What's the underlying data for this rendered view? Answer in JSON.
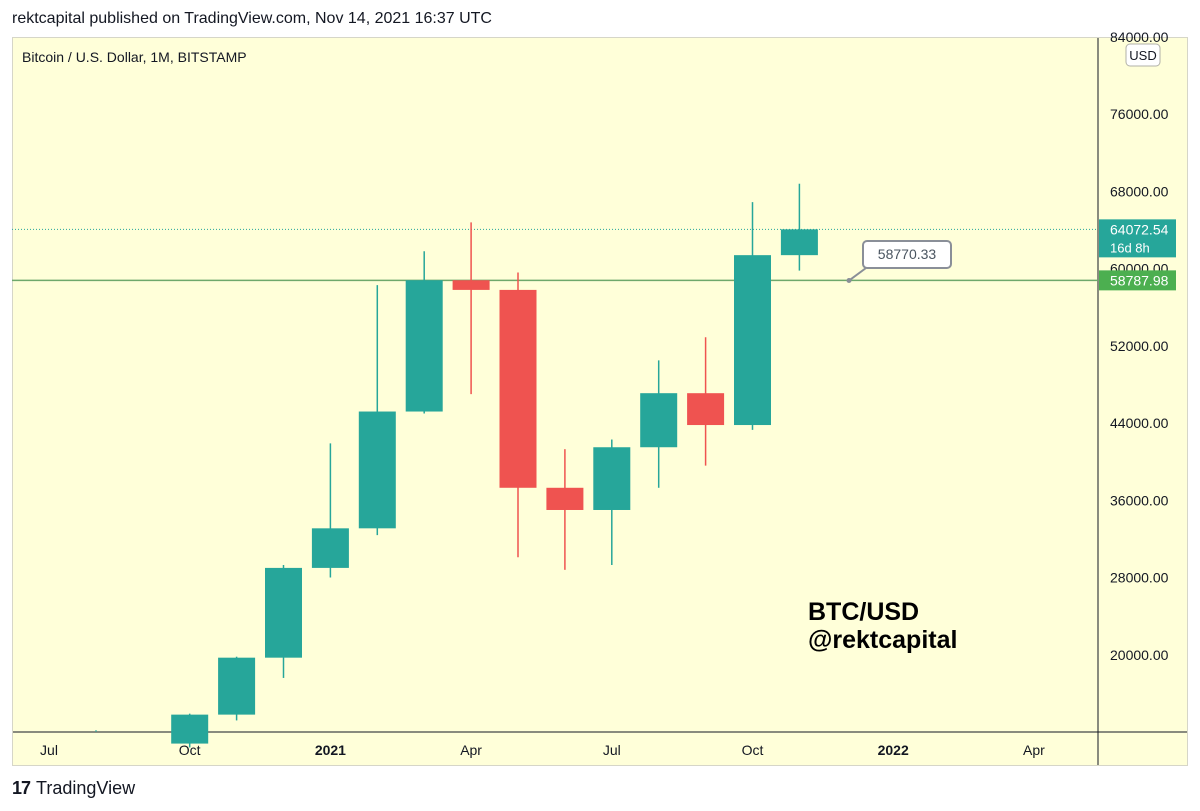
{
  "header": {
    "published_line": "rektcapital published on TradingView.com, Nov 14, 2021 16:37 UTC"
  },
  "footer": {
    "logo_mark": "17",
    "logo_text": "TradingView"
  },
  "watermark": {
    "line1": "BTC/USD",
    "line2": "@rektcapital"
  },
  "chart_data": {
    "type": "candlestick",
    "title": "Bitcoin / U.S. Dollar, 1M, BITSTAMP",
    "currency_badge": "USD",
    "ylim": [
      12000,
      84000
    ],
    "y_ticks": [
      20000,
      28000,
      36000,
      44000,
      52000,
      60000,
      68000,
      76000,
      84000
    ],
    "y_tick_labels": [
      "20000.00",
      "28000.00",
      "36000.00",
      "44000.00",
      "52000.00",
      "60000.00",
      "68000.00",
      "76000.00",
      "84000.00"
    ],
    "x_tick_labels": [
      {
        "label": "Jul",
        "month_index": 0,
        "bold": false
      },
      {
        "label": "Oct",
        "month_index": 3,
        "bold": false
      },
      {
        "label": "2021",
        "month_index": 6,
        "bold": true
      },
      {
        "label": "Apr",
        "month_index": 9,
        "bold": false
      },
      {
        "label": "Jul",
        "month_index": 12,
        "bold": false
      },
      {
        "label": "Oct",
        "month_index": 15,
        "bold": false
      },
      {
        "label": "2022",
        "month_index": 18,
        "bold": true
      },
      {
        "label": "Apr",
        "month_index": 21,
        "bold": false
      }
    ],
    "candles": [
      {
        "month": "2020-10",
        "open": 10800,
        "high": 13900,
        "low": 10400,
        "close": 13800
      },
      {
        "month": "2020-11",
        "open": 13800,
        "high": 19800,
        "low": 13200,
        "close": 19700
      },
      {
        "month": "2020-12",
        "open": 19700,
        "high": 29300,
        "low": 17600,
        "close": 29000
      },
      {
        "month": "2021-01",
        "open": 29000,
        "high": 41900,
        "low": 28000,
        "close": 33100
      },
      {
        "month": "2021-02",
        "open": 33100,
        "high": 58300,
        "low": 32400,
        "close": 45200
      },
      {
        "month": "2021-03",
        "open": 45200,
        "high": 61800,
        "low": 45000,
        "close": 58800
      },
      {
        "month": "2021-04",
        "open": 58800,
        "high": 64800,
        "low": 47000,
        "close": 57800
      },
      {
        "month": "2021-05",
        "open": 57800,
        "high": 59600,
        "low": 30100,
        "close": 37300
      },
      {
        "month": "2021-06",
        "open": 37300,
        "high": 41300,
        "low": 28800,
        "close": 35000
      },
      {
        "month": "2021-07",
        "open": 35000,
        "high": 42300,
        "low": 29300,
        "close": 41500
      },
      {
        "month": "2021-08",
        "open": 41500,
        "high": 50500,
        "low": 37300,
        "close": 47100
      },
      {
        "month": "2021-09",
        "open": 47100,
        "high": 52900,
        "low": 39600,
        "close": 43800
      },
      {
        "month": "2021-10",
        "open": 43800,
        "high": 66900,
        "low": 43300,
        "close": 61400
      },
      {
        "month": "2021-11",
        "open": 61400,
        "high": 68800,
        "low": 59800,
        "close": 64072.54
      }
    ],
    "current_price": {
      "label": "64072.54",
      "countdown": "16d 8h",
      "value": 64072.54
    },
    "horizontal_line": {
      "label": "58787.98",
      "value": 58787.98
    },
    "callout": {
      "label": "58770.33",
      "value": 58770.33
    },
    "colors": {
      "background": "#ffffd9",
      "up": "#26a69a",
      "down": "#ef5350",
      "support_line": "#6ea86b",
      "support_badge": "#4caf50",
      "axis_line": "#131722"
    }
  }
}
